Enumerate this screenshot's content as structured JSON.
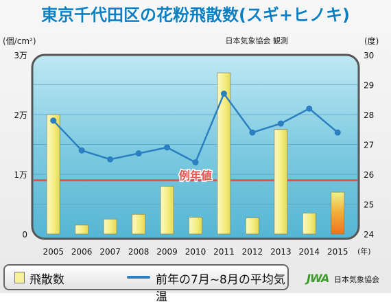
{
  "header": {
    "title": "東京千代田区の花粉飛散数(スギ+ヒノキ)",
    "source": "日本気象協会 観測"
  },
  "units": {
    "left": "(個/cm²)",
    "right": "(度)",
    "x": "(年)"
  },
  "legend": {
    "bar_label": "飛散数",
    "line_label": "前年の7月~8月の平均気温"
  },
  "footer": {
    "org_mark": "JWA",
    "org_name": "日本気象協会"
  },
  "colors": {
    "bar": "#f7f29a",
    "bar_2015": "#f28a1c",
    "line": "#2b7fc0",
    "reference": "#e2524a",
    "plot_bg": "#8fd2e6"
  },
  "chart_data": {
    "type": "bar",
    "categories": [
      "2005",
      "2006",
      "2007",
      "2008",
      "2009",
      "2010",
      "2011",
      "2012",
      "2013",
      "2014",
      "2015"
    ],
    "series": [
      {
        "name": "飛散数",
        "axis": "left",
        "unit": "個/cm²",
        "values": [
          20000,
          1500,
          2500,
          3300,
          8000,
          2800,
          27000,
          2700,
          17500,
          3500,
          7000
        ]
      },
      {
        "name": "前年の7月~8月の平均気温",
        "type": "line",
        "axis": "right",
        "unit": "度",
        "values": [
          27.8,
          26.8,
          26.5,
          26.7,
          26.9,
          26.4,
          28.7,
          27.4,
          27.7,
          28.2,
          27.4
        ]
      }
    ],
    "reference_line": {
      "label": "例年値",
      "value": 9000,
      "axis": "left"
    },
    "y_left": {
      "ylim": [
        0,
        30000
      ],
      "ticks": [
        {
          "value": 0,
          "label": "0"
        },
        {
          "value": 10000,
          "label": "1万"
        },
        {
          "value": 20000,
          "label": "2万"
        },
        {
          "value": 30000,
          "label": "3万"
        }
      ]
    },
    "y_right": {
      "ylim": [
        24,
        30
      ],
      "ticks": [
        {
          "value": 24,
          "label": "24"
        },
        {
          "value": 25,
          "label": "25"
        },
        {
          "value": 26,
          "label": "26"
        },
        {
          "value": 27,
          "label": "27"
        },
        {
          "value": 28,
          "label": "28"
        },
        {
          "value": 29,
          "label": "29"
        },
        {
          "value": 30,
          "label": "30"
        }
      ]
    },
    "grid": true,
    "legend_position": "bottom"
  }
}
